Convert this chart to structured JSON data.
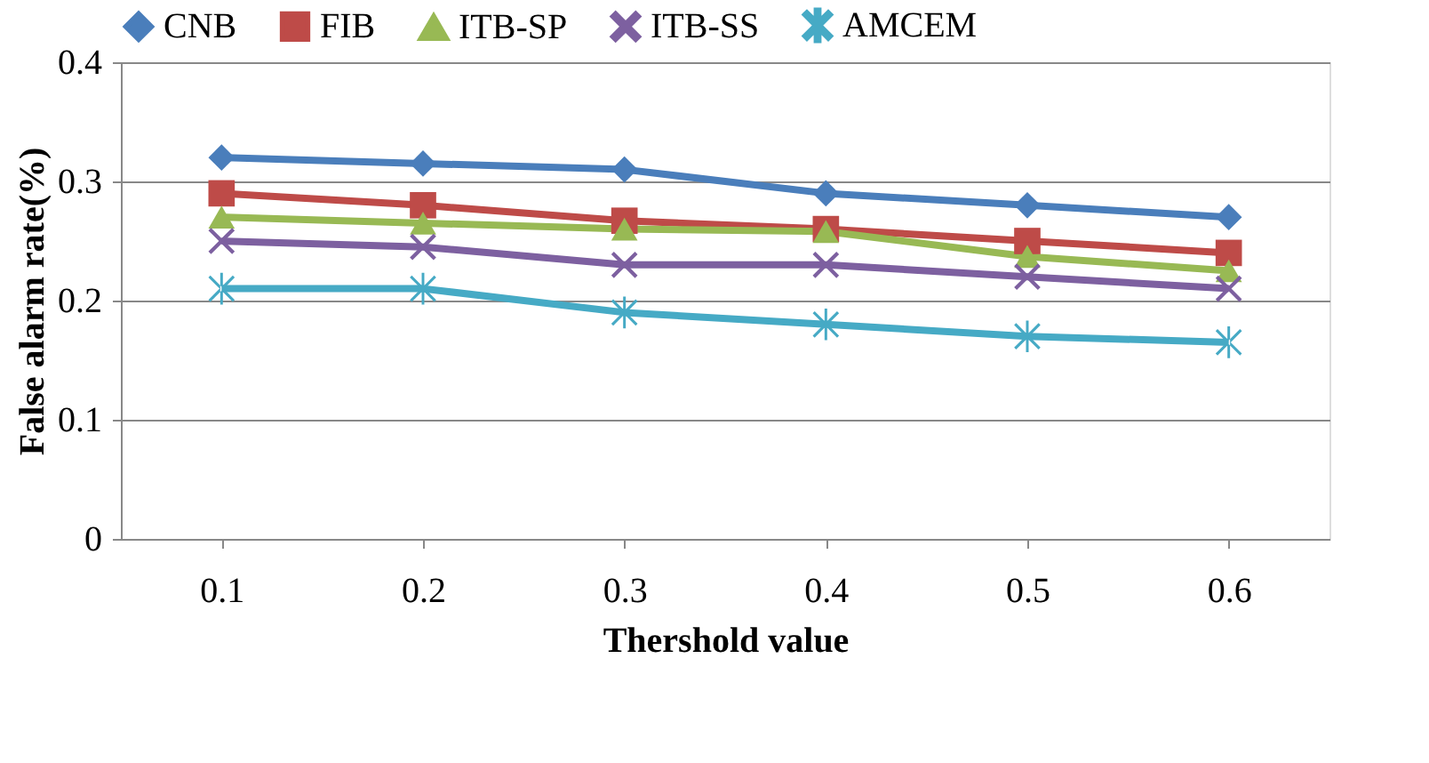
{
  "chart_data": {
    "type": "line",
    "xlabel": "Thershold value",
    "ylabel": "False alarm rate(%)",
    "categories": [
      "0.1",
      "0.2",
      "0.3",
      "0.4",
      "0.5",
      "0.6"
    ],
    "series": [
      {
        "name": "CNB",
        "color": "#4a7ebb",
        "marker": "diamond",
        "values": [
          0.32,
          0.315,
          0.31,
          0.29,
          0.28,
          0.27
        ]
      },
      {
        "name": "FIB",
        "color": "#be4b48",
        "marker": "square",
        "values": [
          0.29,
          0.28,
          0.267,
          0.26,
          0.25,
          0.24
        ]
      },
      {
        "name": "ITB-SP",
        "color": "#98b954",
        "marker": "triangle",
        "values": [
          0.27,
          0.265,
          0.26,
          0.258,
          0.237,
          0.225
        ]
      },
      {
        "name": "ITB-SS",
        "color": "#7d60a0",
        "marker": "cross",
        "values": [
          0.25,
          0.245,
          0.23,
          0.23,
          0.22,
          0.21
        ]
      },
      {
        "name": "AMCEM",
        "color": "#46aac5",
        "marker": "star",
        "values": [
          0.21,
          0.21,
          0.19,
          0.18,
          0.17,
          0.165
        ]
      }
    ],
    "ylim": [
      0,
      0.4
    ],
    "yticks": [
      0,
      {
        "value": 0.1,
        "label": "0.1"
      },
      {
        "value": 0.2,
        "label": "0.2"
      },
      {
        "value": 0.3,
        "label": "0.3"
      },
      {
        "value": 0.4,
        "label": "0.4"
      }
    ],
    "grid": "y",
    "legend": "top",
    "line_style": "solid"
  }
}
